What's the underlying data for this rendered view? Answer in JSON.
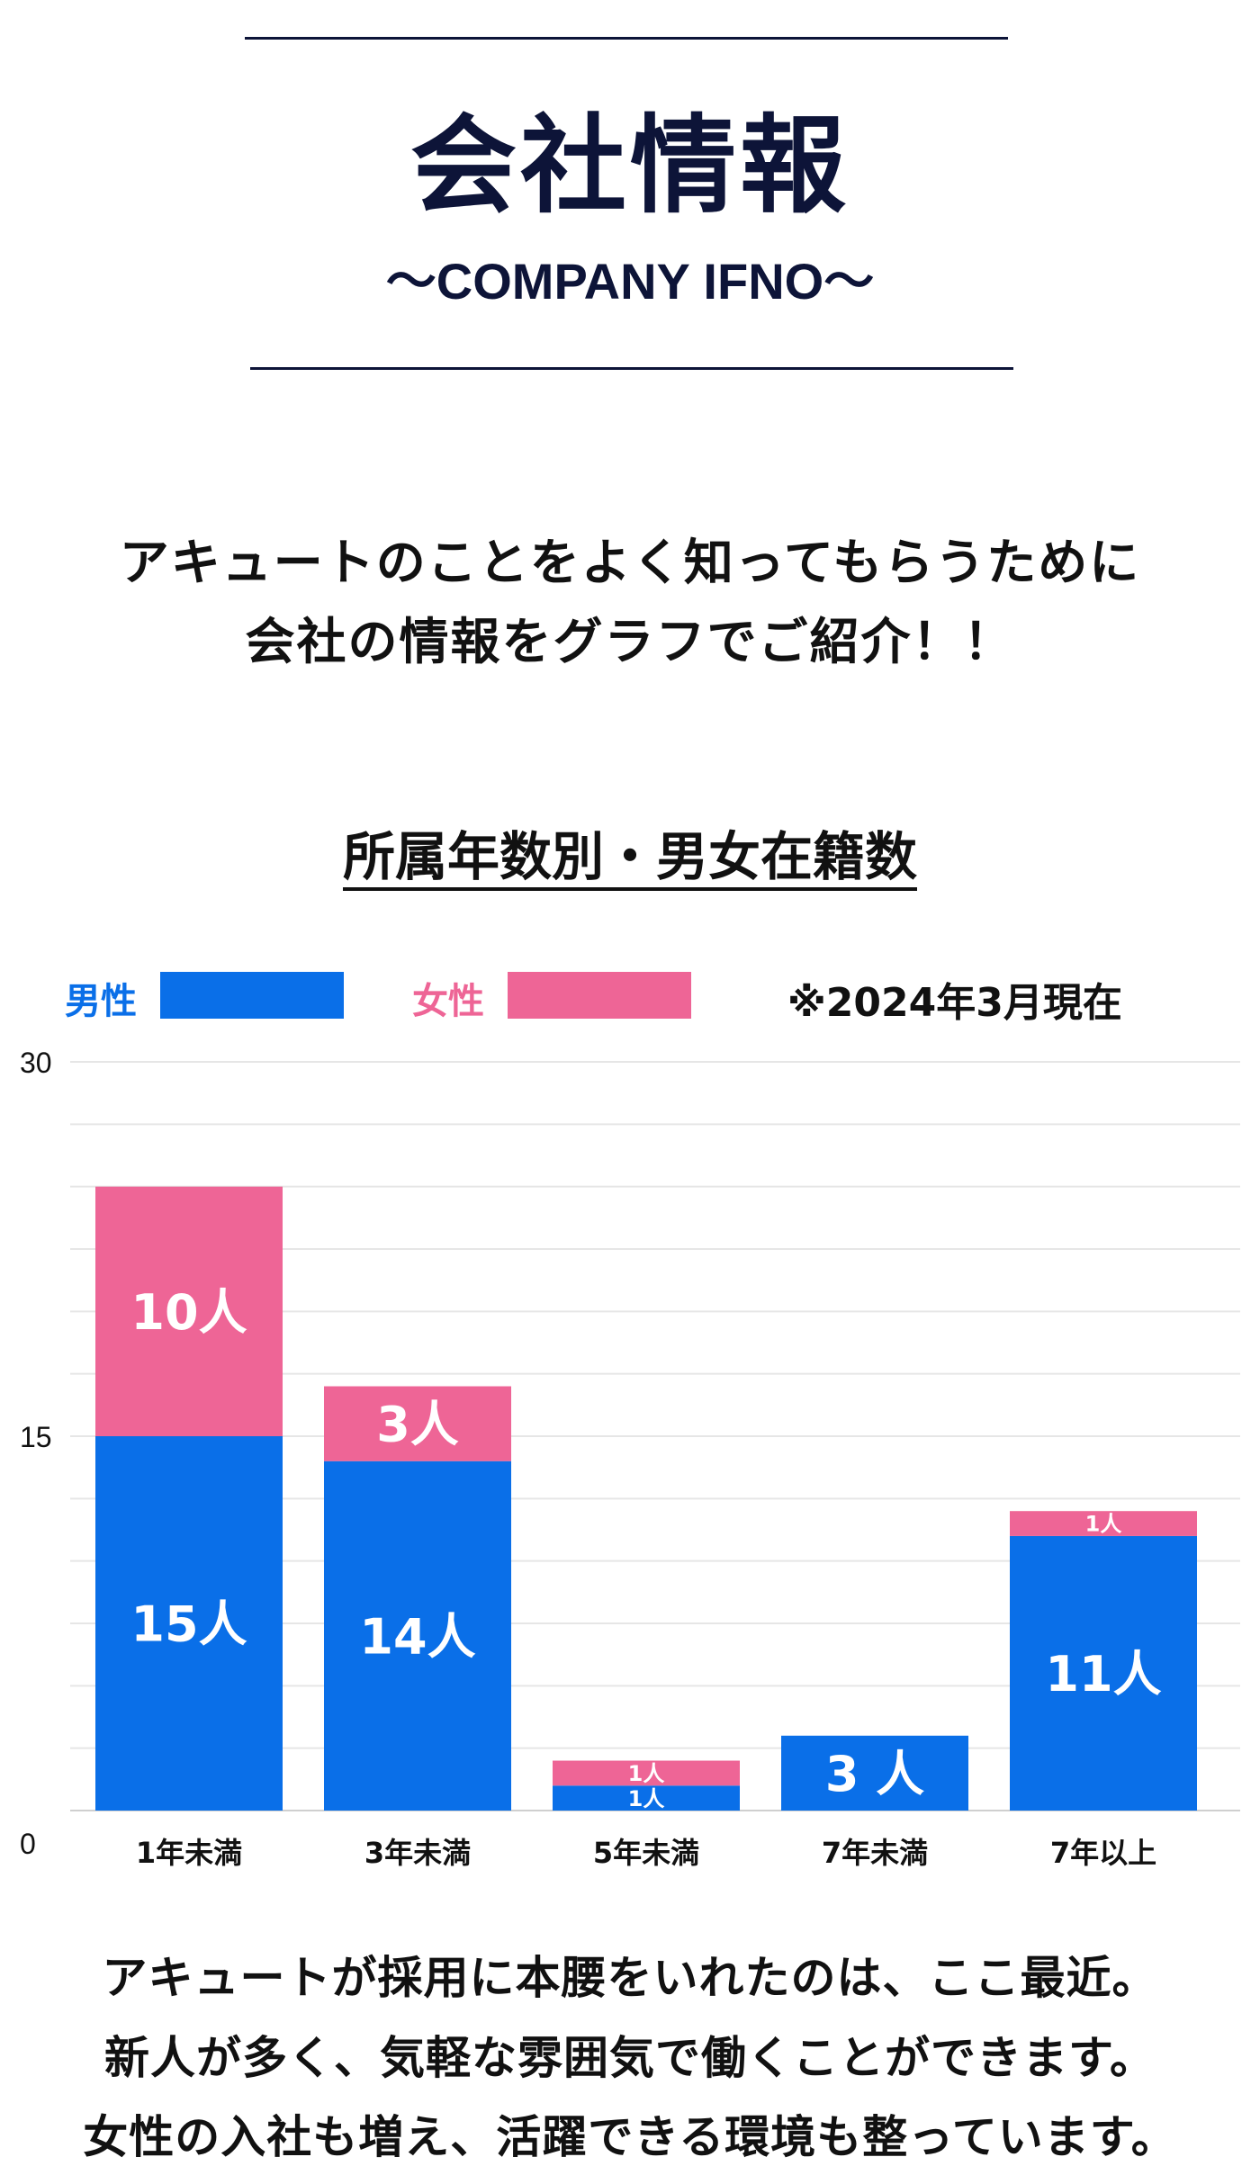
{
  "header": {
    "title": "会社情報",
    "subtitle": "〜COMPANY IFNO〜"
  },
  "intro": {
    "line1": "アキュートのことをよく知ってもらうために",
    "line2": "会社の情報をグラフでご紹介！！"
  },
  "colors": {
    "navy": "#0d1438",
    "male": "#0a6fe8",
    "female": "#ee6596"
  },
  "chart_data": {
    "type": "bar",
    "stacked": true,
    "title": "所属年数別・男女在籍数",
    "note": "※2024年3月現在",
    "categories": [
      "1年未満",
      "3年未満",
      "5年未満",
      "7年未満",
      "7年以上"
    ],
    "series": [
      {
        "name": "男性",
        "color": "#0a6fe8",
        "values": [
          15,
          14,
          1,
          3,
          11
        ],
        "labels": [
          "15人",
          "14人",
          "1人",
          "3 人",
          "11人"
        ]
      },
      {
        "name": "女性",
        "color": "#ee6596",
        "values": [
          10,
          3,
          1,
          0,
          1
        ],
        "labels": [
          "10人",
          "3人",
          "1人",
          "",
          "1人"
        ]
      }
    ],
    "ylim": [
      0,
      30
    ],
    "yticks": [
      "0",
      "15",
      "30"
    ],
    "grid": true,
    "legend": "top-left"
  },
  "closing": {
    "line1": "アキュートが採用に本腰をいれたのは、ここ最近。",
    "line2": "新人が多く、気軽な雰囲気で働くことができます。",
    "line3": "女性の入社も増え、活躍できる環境も整っています。"
  }
}
